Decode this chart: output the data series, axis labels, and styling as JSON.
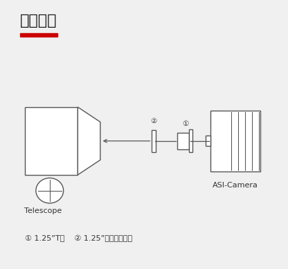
{
  "title": "连接方式",
  "title_underline_color": "#cc0000",
  "page_bg": "#f0f0f0",
  "diagram_bg": "#e8e8e8",
  "line_color": "#555555",
  "text_color": "#333333",
  "white": "#ffffff",
  "label1": "Telescope",
  "label2": "ASI-Camera",
  "footnote_circ1": "①",
  "footnote_circ2": "②",
  "footnote_text1": " 1.25”T桶",
  "footnote_text2": " 1.25”滤镜（可选）",
  "circ1": "①",
  "circ2": "②"
}
